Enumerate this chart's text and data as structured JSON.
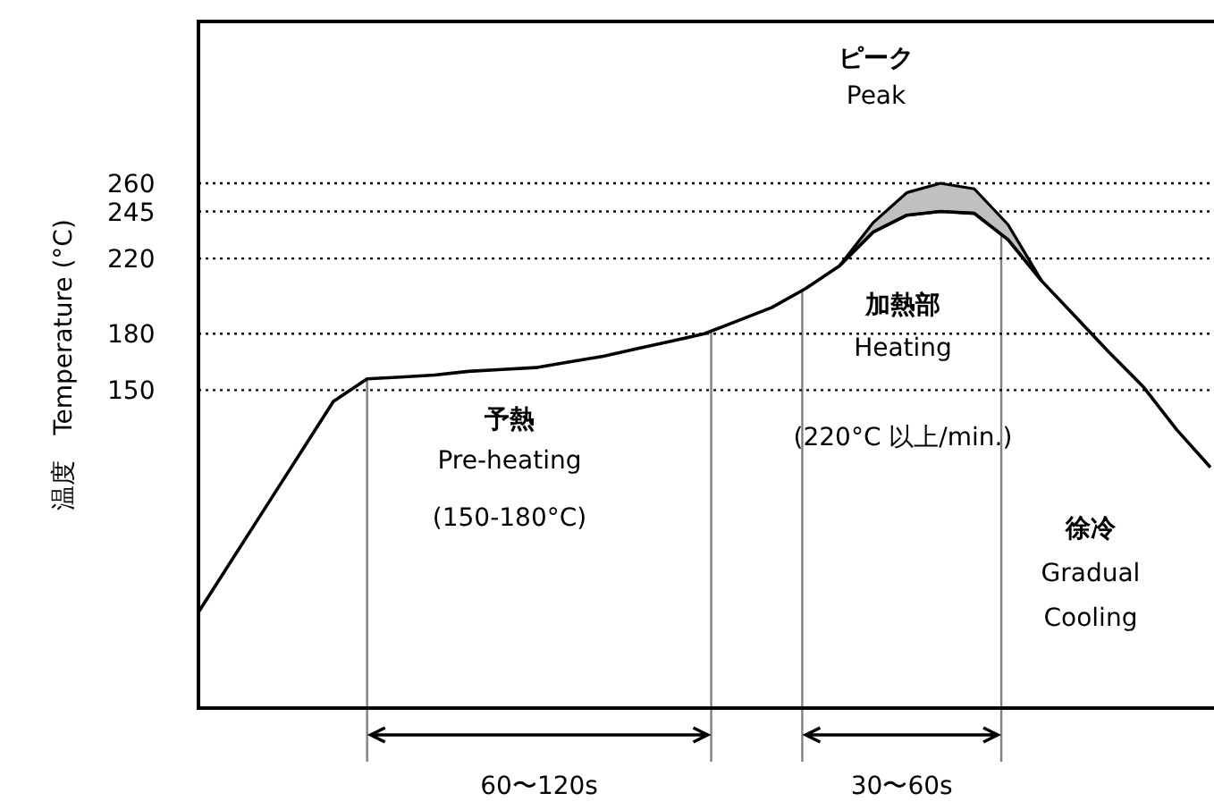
{
  "chart_data": {
    "type": "line",
    "ylabel": "温度　Temperature (°C)",
    "categories": [
      null,
      null,
      null,
      null,
      null,
      null,
      null,
      null,
      null,
      null,
      null,
      null,
      null,
      null,
      null,
      null,
      null,
      null,
      null,
      null,
      null,
      null,
      null,
      null,
      null,
      null,
      null,
      null,
      null,
      null,
      null
    ],
    "ylim": [
      -19,
      346
    ],
    "yticks": [
      150,
      180,
      220,
      245,
      260
    ],
    "tick_labels": "y",
    "grid": false,
    "line_style": "solid",
    "marker": "none",
    "series": [
      {
        "color": "#000000",
        "values": [
          32,
          60,
          88,
          116,
          144,
          156,
          157,
          158,
          160,
          161,
          162,
          165,
          168,
          172,
          176,
          180,
          187,
          194,
          204,
          216,
          234,
          243,
          245,
          244,
          230,
          208,
          189,
          170,
          152,
          129,
          109
        ],
        "lower": [
          null,
          null,
          null,
          null,
          null,
          null,
          null,
          null,
          null,
          null,
          null,
          null,
          null,
          null,
          null,
          null,
          null,
          null,
          null,
          216,
          234,
          243,
          245,
          244,
          230,
          208,
          null,
          null,
          null,
          null,
          null
        ],
        "upper": [
          null,
          null,
          null,
          null,
          null,
          null,
          null,
          null,
          null,
          null,
          null,
          null,
          null,
          null,
          null,
          null,
          null,
          null,
          null,
          216,
          239,
          255,
          260,
          257,
          238,
          208,
          null,
          null,
          null,
          null,
          null
        ]
      }
    ],
    "ref_lines": [
      {
        "axis": "y",
        "value": 150,
        "color": "#000000",
        "line_style": "dotted"
      },
      {
        "axis": "y",
        "value": 180,
        "color": "#000000",
        "line_style": "dotted"
      },
      {
        "axis": "y",
        "value": 220,
        "color": "#000000",
        "line_style": "dotted"
      },
      {
        "axis": "y",
        "value": 245,
        "color": "#000000",
        "line_style": "dotted"
      },
      {
        "axis": "y",
        "value": 260,
        "color": "#000000",
        "line_style": "dotted"
      }
    ],
    "annotations": [
      "ピーク",
      "Peak",
      "予熱",
      "Pre-heating",
      "(150-180°C)",
      "加熱部",
      "Heating",
      "(220°C 以上/min.)",
      "徐冷",
      "Gradual",
      "Cooling",
      "60〜120s",
      "30〜60s"
    ]
  }
}
